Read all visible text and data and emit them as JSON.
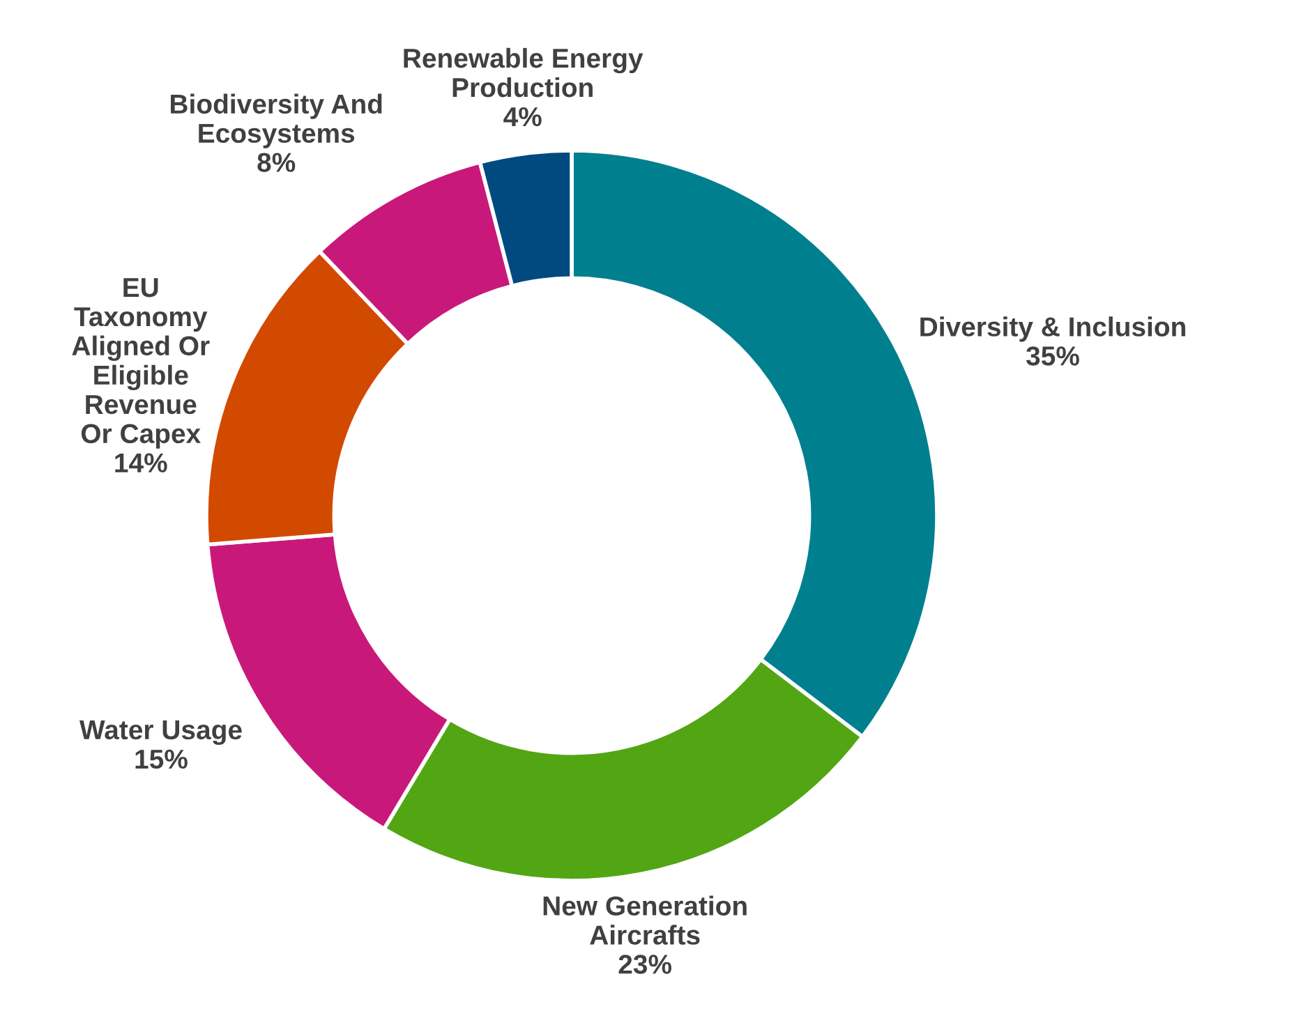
{
  "chart_data": {
    "type": "donut",
    "categories": [
      "Diversity & Inclusion",
      "New Generation\nAircrafts",
      "Water Usage",
      "EU\nTaxonomy\nAligned Or\nEligible\nRevenue\nOr Capex",
      "Biodiversity And\nEcosystems",
      "Renewable Energy\nProduction"
    ],
    "values": [
      35,
      23,
      15,
      14,
      8,
      4
    ],
    "value_labels": [
      "35%",
      "23%",
      "15%",
      "14%",
      "8%",
      "4%"
    ],
    "colors": [
      "#00808f",
      "#52a614",
      "#c8197a",
      "#d24a00",
      "#c8197a",
      "#004a80"
    ]
  }
}
